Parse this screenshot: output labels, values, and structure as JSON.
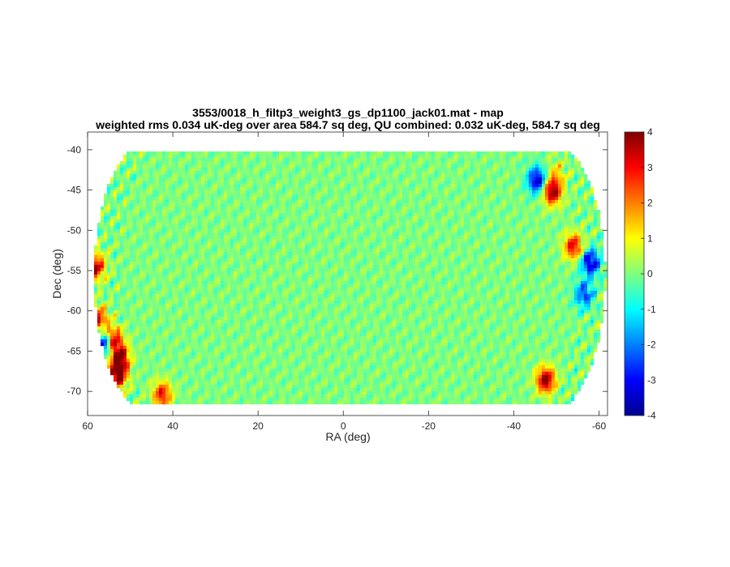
{
  "chart_data": {
    "type": "heatmap",
    "title": "3553/0018_h_filtp3_weight3_gs_dp1100_jack01.mat - map",
    "subtitle": "weighted rms 0.034 uK-deg over area 584.7 sq deg, QU combined: 0.032 uK-deg, 584.7 sq deg",
    "xlabel": "RA (deg)",
    "ylabel": "Dec (deg)",
    "xlim": [
      60,
      -62
    ],
    "ylim": [
      -73,
      -37.8
    ],
    "x_reversed": true,
    "xticks": [
      60,
      40,
      20,
      0,
      -20,
      -40,
      -60
    ],
    "xtick_labels": [
      "60",
      "40",
      "20",
      "0",
      "-20",
      "-40",
      "-60"
    ],
    "yticks": [
      -40,
      -45,
      -50,
      -55,
      -60,
      -65,
      -70
    ],
    "ytick_labels": [
      "-40",
      "-45",
      "-50",
      "-55",
      "-60",
      "-65",
      "-70"
    ],
    "colormap": "jet",
    "clim": [
      -4,
      4
    ],
    "colorbar_ticks": [
      4,
      3,
      2,
      1,
      0,
      -1,
      -2,
      -3,
      -4
    ],
    "colorbar_labels": [
      "4",
      "3",
      "2",
      "1",
      "0",
      "-1",
      "-2",
      "-3",
      "-4"
    ],
    "field": {
      "ra_range": [
        58.5,
        -61.5
      ],
      "dec_range": [
        -71.2,
        -40.2
      ],
      "background_value": 0.0,
      "noise_amplitude": 0.45,
      "edge_features": [
        {
          "ra": 58.2,
          "dec": -54.5,
          "value": 3.6
        },
        {
          "ra": 57.5,
          "dec": -61.0,
          "value": 3.0
        },
        {
          "ra": 56.5,
          "dec": -64.2,
          "value": -3.8
        },
        {
          "ra": 52.5,
          "dec": -65.8,
          "value": 4.0
        },
        {
          "ra": 54.0,
          "dec": -63.5,
          "value": 3.2
        },
        {
          "ra": 53.0,
          "dec": -68.0,
          "value": 4.0
        },
        {
          "ra": 42.5,
          "dec": -70.4,
          "value": 3.0
        },
        {
          "ra": -49.0,
          "dec": -45.2,
          "value": 4.0
        },
        {
          "ra": -45.5,
          "dec": -43.8,
          "value": -3.6
        },
        {
          "ra": -54.0,
          "dec": -52.0,
          "value": 3.2
        },
        {
          "ra": -58.0,
          "dec": -54.0,
          "value": -3.5
        },
        {
          "ra": -56.5,
          "dec": -58.0,
          "value": -2.5
        },
        {
          "ra": -47.5,
          "dec": -68.6,
          "value": 4.0
        },
        {
          "ra": -50.0,
          "dec": -43.0,
          "value": 1.2
        }
      ]
    }
  }
}
